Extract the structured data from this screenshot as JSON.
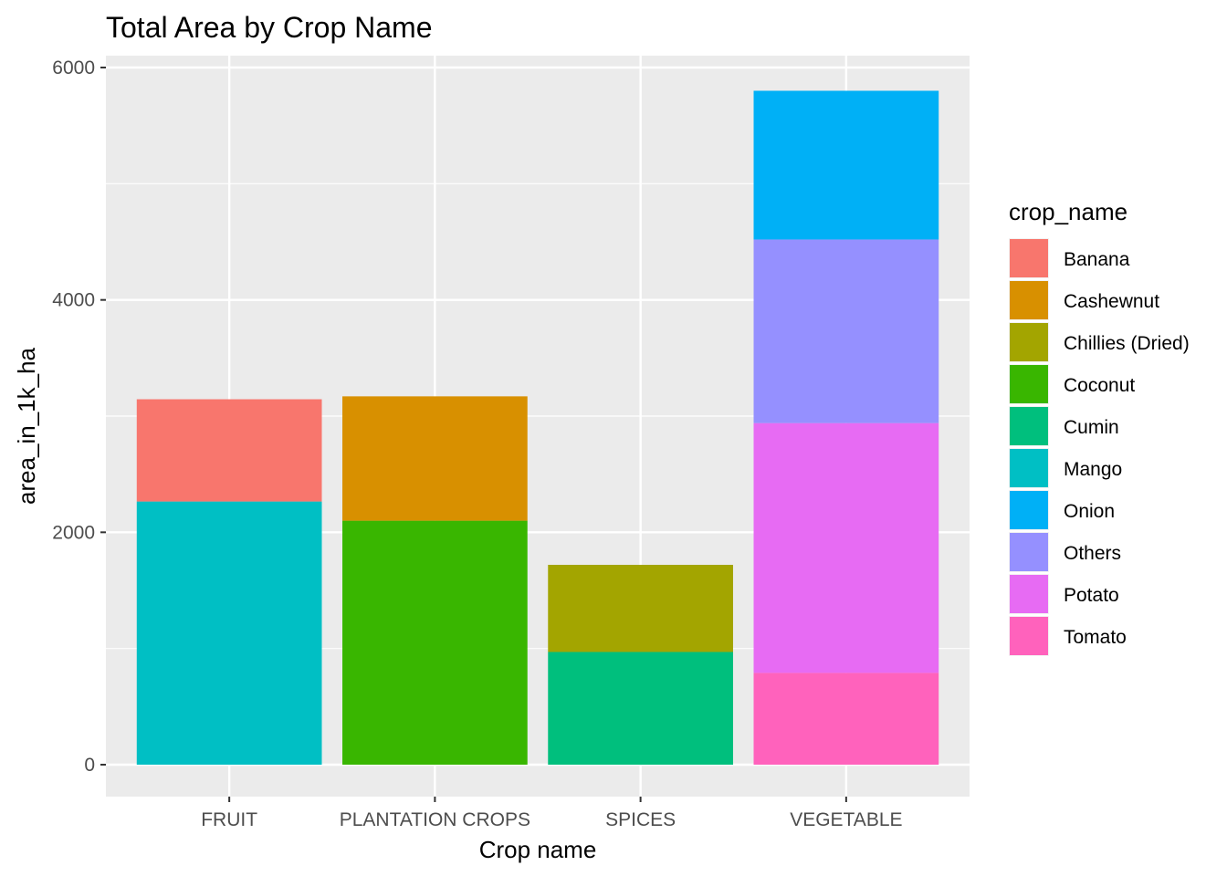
{
  "chart_data": {
    "type": "bar",
    "stacked": true,
    "title": "Total Area by Crop Name",
    "xlabel": "Crop name",
    "ylabel": "area_in_1k_ha",
    "categories": [
      "FRUIT",
      "PLANTATION CROPS",
      "SPICES",
      "VEGETABLE"
    ],
    "ylim": [
      0,
      6000
    ],
    "yticks": [
      0,
      2000,
      4000,
      6000
    ],
    "ytick_labels": [
      "0",
      "2000",
      "4000",
      "6000"
    ],
    "grid": true,
    "legend": {
      "title": "crop_name",
      "placement": "right",
      "entries": [
        {
          "name": "Banana",
          "color": "#F8766D"
        },
        {
          "name": "Cashewnut",
          "color": "#D89000"
        },
        {
          "name": "Chillies (Dried)",
          "color": "#A3A500"
        },
        {
          "name": "Coconut",
          "color": "#39B600"
        },
        {
          "name": "Cumin",
          "color": "#00BF7D"
        },
        {
          "name": "Mango",
          "color": "#00BFC4"
        },
        {
          "name": "Onion",
          "color": "#00B0F6"
        },
        {
          "name": "Others",
          "color": "#9590FF"
        },
        {
          "name": "Potato",
          "color": "#E76BF3"
        },
        {
          "name": "Tomato",
          "color": "#FF62BC"
        }
      ]
    },
    "series": [
      {
        "name": "Banana",
        "color": "#F8766D",
        "values": [
          880,
          0,
          0,
          0
        ]
      },
      {
        "name": "Cashewnut",
        "color": "#D89000",
        "values": [
          0,
          1070,
          0,
          0
        ]
      },
      {
        "name": "Chillies (Dried)",
        "color": "#A3A500",
        "values": [
          0,
          0,
          750,
          0
        ]
      },
      {
        "name": "Coconut",
        "color": "#39B600",
        "values": [
          0,
          2100,
          0,
          0
        ]
      },
      {
        "name": "Cumin",
        "color": "#00BF7D",
        "values": [
          0,
          0,
          970,
          0
        ]
      },
      {
        "name": "Mango",
        "color": "#00BFC4",
        "values": [
          2265,
          0,
          0,
          0
        ]
      },
      {
        "name": "Onion",
        "color": "#00B0F6",
        "values": [
          0,
          0,
          0,
          1280
        ]
      },
      {
        "name": "Others",
        "color": "#9590FF",
        "values": [
          0,
          0,
          0,
          1580
        ]
      },
      {
        "name": "Potato",
        "color": "#E76BF3",
        "values": [
          0,
          0,
          0,
          2150
        ]
      },
      {
        "name": "Tomato",
        "color": "#FF62BC",
        "values": [
          0,
          0,
          0,
          790
        ]
      }
    ],
    "colors": {
      "panel_background": "#EBEBEB",
      "gridline": "#FFFFFF"
    }
  }
}
